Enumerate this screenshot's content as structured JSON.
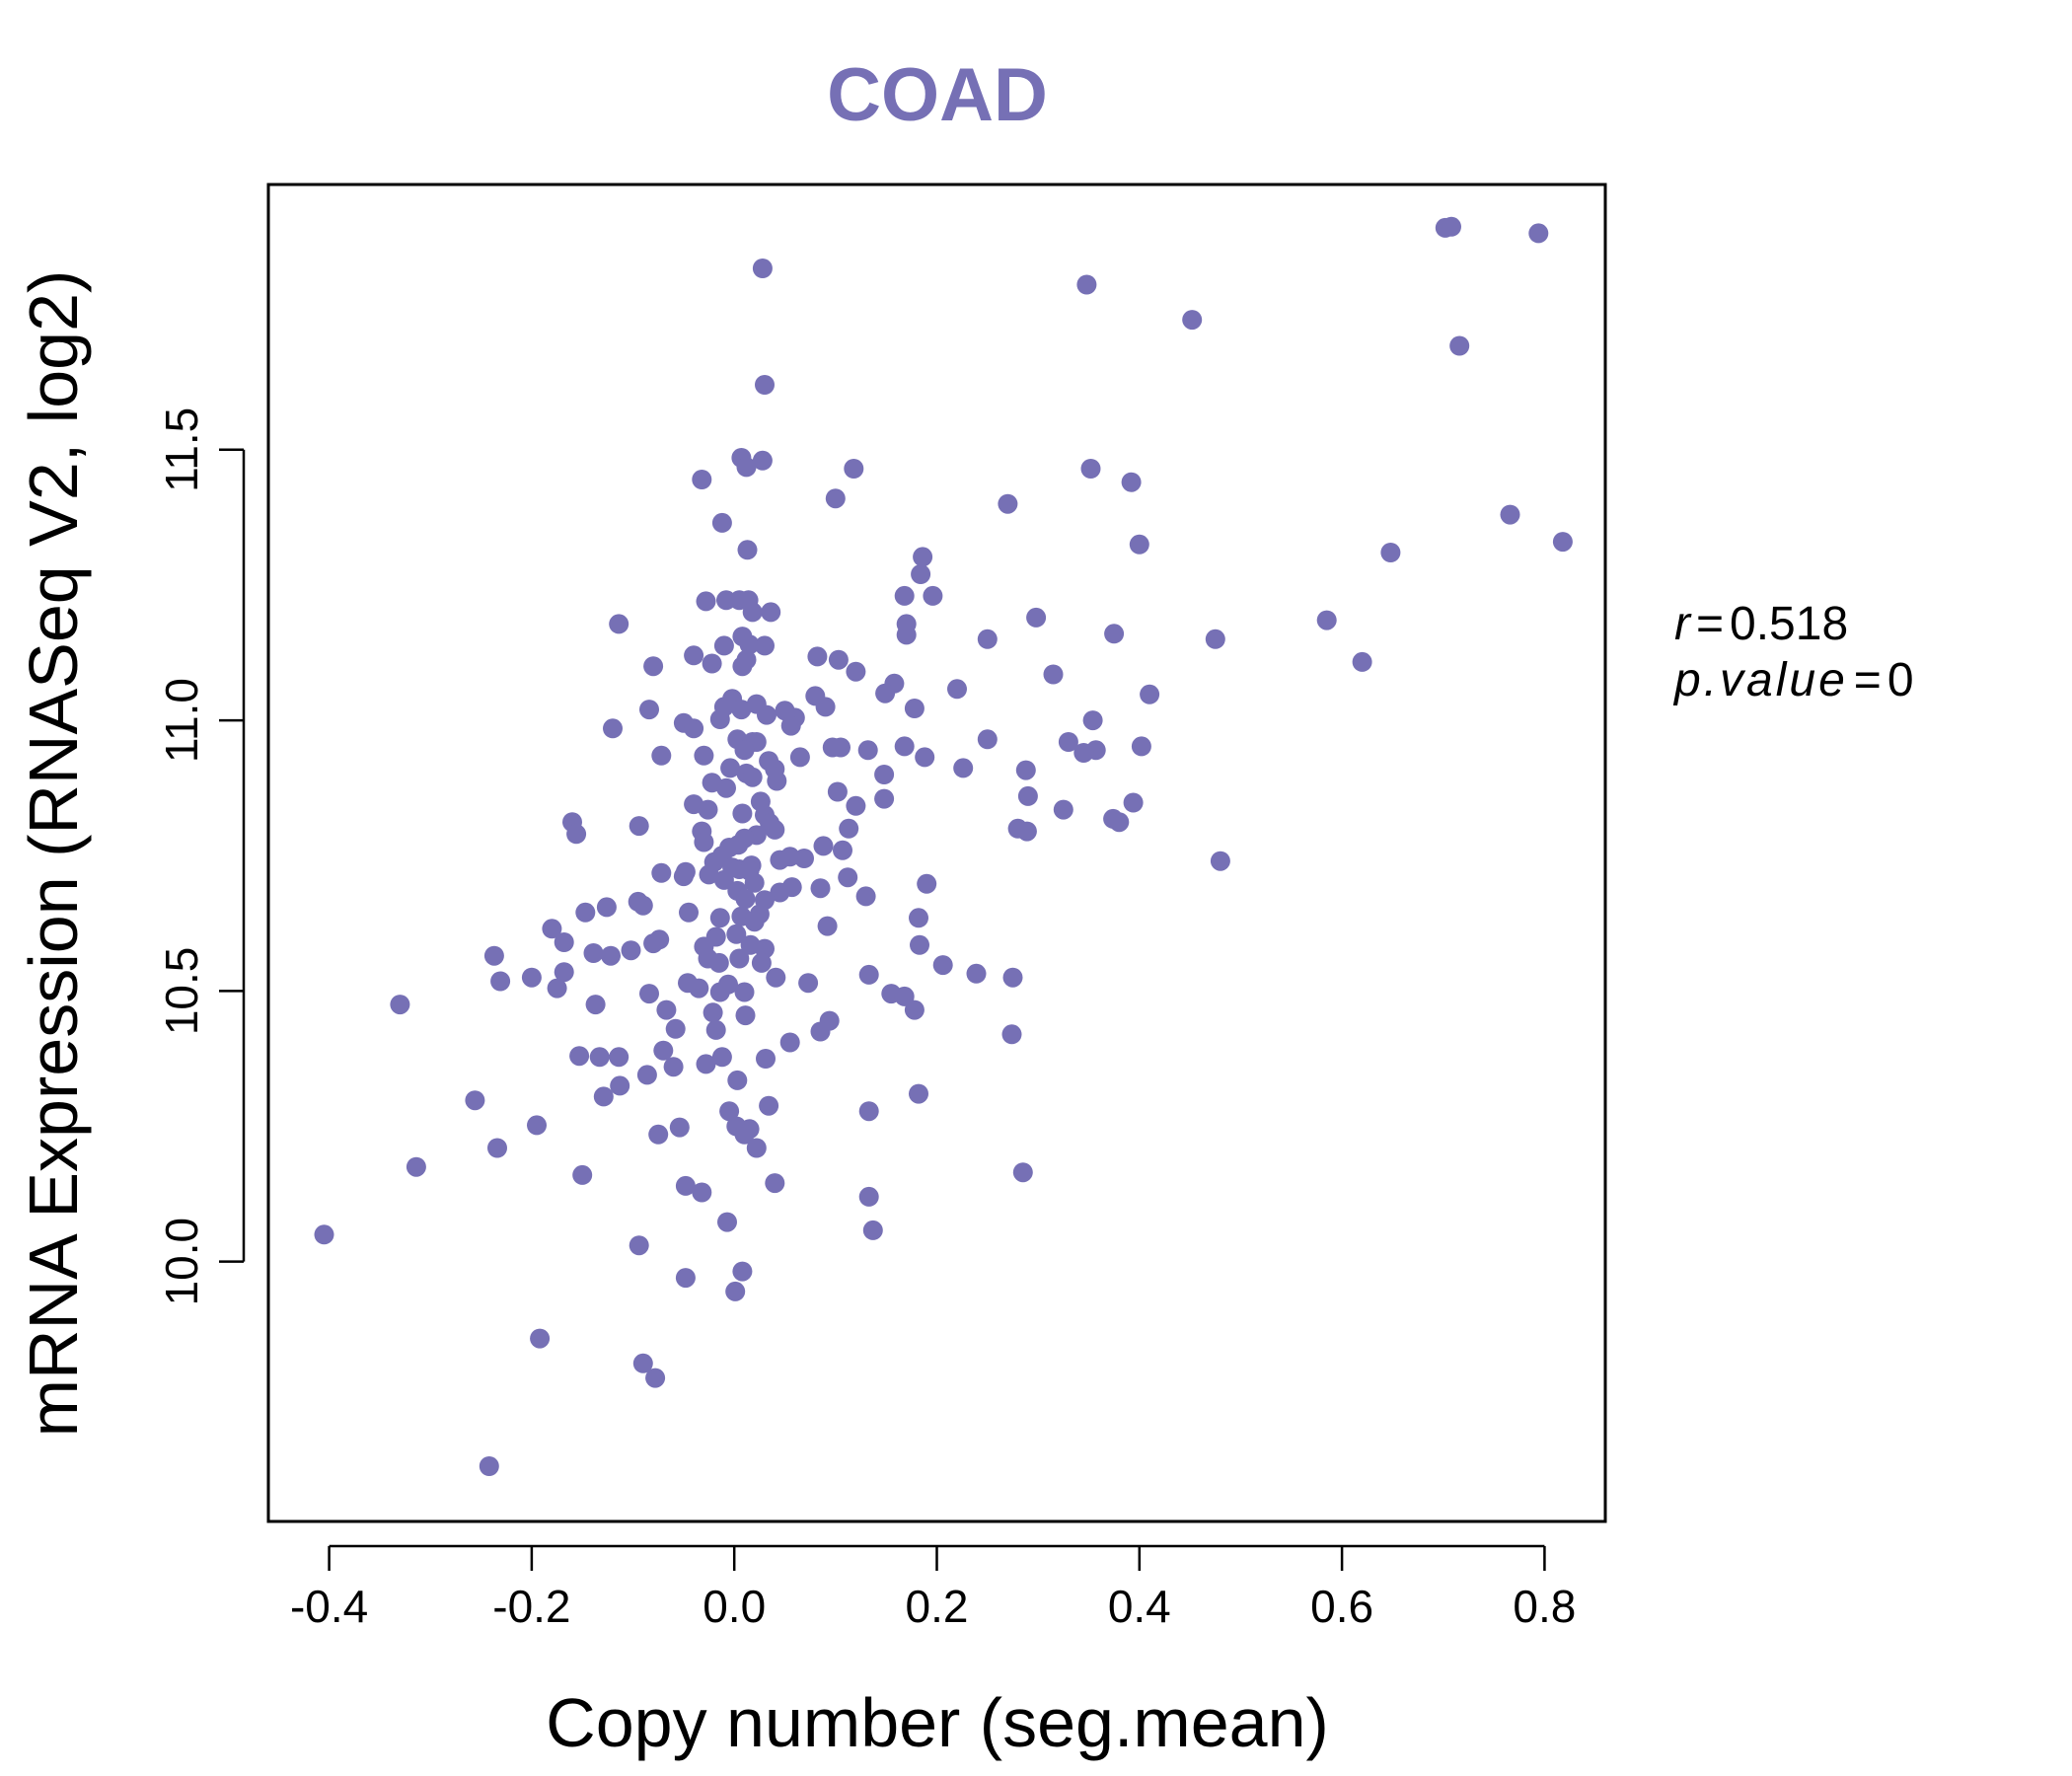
{
  "chart_data": {
    "type": "scatter",
    "title": "COAD",
    "xlabel": "Copy number (seg.mean)",
    "ylabel": "mRNA Expression (RNASeq V2, log2)",
    "xlim": [
      -0.46,
      0.86
    ],
    "ylim": [
      9.52,
      11.99
    ],
    "x_ticks": [
      -0.4,
      -0.2,
      0.0,
      0.2,
      0.4,
      0.6,
      0.8
    ],
    "x_tick_labels": [
      "-0.4",
      "-0.2",
      "0.0",
      "0.2",
      "0.4",
      "0.6",
      "0.8"
    ],
    "y_ticks": [
      10.0,
      10.5,
      11.0,
      11.5
    ],
    "y_tick_labels": [
      "10.0",
      "10.5",
      "11.0",
      "11.5"
    ],
    "grid": false,
    "legend": "none",
    "point_color": "#7670b5",
    "stats": {
      "r_label": "r",
      "r_value": "0.518",
      "p_label": "p.value",
      "p_value": "0"
    },
    "points": [
      [
        0.028,
        11.835
      ],
      [
        0.348,
        11.805
      ],
      [
        0.452,
        11.74
      ],
      [
        0.702,
        11.91
      ],
      [
        0.708,
        11.912
      ],
      [
        0.794,
        11.9
      ],
      [
        0.716,
        11.692
      ],
      [
        0.03,
        11.62
      ],
      [
        0.766,
        11.38
      ],
      [
        0.818,
        11.33
      ],
      [
        0.648,
        11.31
      ],
      [
        0.585,
        11.185
      ],
      [
        0.62,
        11.108
      ],
      [
        0.475,
        11.15
      ],
      [
        0.48,
        10.74
      ],
      [
        0.007,
        11.485
      ],
      [
        0.028,
        11.48
      ],
      [
        0.118,
        11.465
      ],
      [
        0.012,
        11.468
      ],
      [
        -0.032,
        11.445
      ],
      [
        0.352,
        11.465
      ],
      [
        0.392,
        11.44
      ],
      [
        0.1,
        11.41
      ],
      [
        0.27,
        11.4
      ],
      [
        -0.012,
        11.365
      ],
      [
        0.4,
        11.325
      ],
      [
        0.013,
        11.315
      ],
      [
        0.186,
        11.302
      ],
      [
        0.184,
        11.27
      ],
      [
        0.168,
        11.23
      ],
      [
        0.196,
        11.23
      ],
      [
        -0.028,
        11.22
      ],
      [
        -0.008,
        11.222
      ],
      [
        0.005,
        11.222
      ],
      [
        0.014,
        11.222
      ],
      [
        0.018,
        11.2
      ],
      [
        0.036,
        11.2
      ],
      [
        0.298,
        11.19
      ],
      [
        0.17,
        11.178
      ],
      [
        -0.114,
        11.178
      ],
      [
        0.17,
        11.158
      ],
      [
        0.25,
        11.15
      ],
      [
        0.375,
        11.16
      ],
      [
        0.008,
        11.155
      ],
      [
        -0.01,
        11.138
      ],
      [
        0.015,
        11.14
      ],
      [
        0.03,
        11.138
      ],
      [
        -0.04,
        11.12
      ],
      [
        0.082,
        11.118
      ],
      [
        0.103,
        11.112
      ],
      [
        -0.022,
        11.105
      ],
      [
        -0.08,
        11.1
      ],
      [
        0.008,
        11.1
      ],
      [
        0.012,
        11.112
      ],
      [
        0.12,
        11.09
      ],
      [
        0.315,
        11.085
      ],
      [
        0.158,
        11.068
      ],
      [
        0.22,
        11.058
      ],
      [
        0.149,
        11.05
      ],
      [
        0.41,
        11.048
      ],
      [
        0.08,
        11.045
      ],
      [
        -0.002,
        11.04
      ],
      [
        0.022,
        11.03
      ],
      [
        -0.01,
        11.025
      ],
      [
        0.09,
        11.025
      ],
      [
        -0.084,
        11.02
      ],
      [
        0.178,
        11.022
      ],
      [
        0.007,
        11.02
      ],
      [
        0.05,
        11.018
      ],
      [
        0.032,
        11.01
      ],
      [
        0.06,
        11.005
      ],
      [
        -0.014,
        11.002
      ],
      [
        0.354,
        11.0
      ],
      [
        0.056,
        10.99
      ],
      [
        -0.05,
        10.995
      ],
      [
        -0.04,
        10.985
      ],
      [
        -0.12,
        10.985
      ],
      [
        0.25,
        10.965
      ],
      [
        0.33,
        10.96
      ],
      [
        0.003,
        10.965
      ],
      [
        0.018,
        10.96
      ],
      [
        0.022,
        10.96
      ],
      [
        0.097,
        10.95
      ],
      [
        0.105,
        10.95
      ],
      [
        0.132,
        10.945
      ],
      [
        0.168,
        10.952
      ],
      [
        0.357,
        10.945
      ],
      [
        0.345,
        10.94
      ],
      [
        0.402,
        10.952
      ],
      [
        0.01,
        10.945
      ],
      [
        -0.03,
        10.935
      ],
      [
        0.065,
        10.932
      ],
      [
        0.188,
        10.932
      ],
      [
        -0.072,
        10.935
      ],
      [
        0.034,
        10.925
      ],
      [
        0.226,
        10.912
      ],
      [
        -0.004,
        10.912
      ],
      [
        0.04,
        10.91
      ],
      [
        0.288,
        10.908
      ],
      [
        0.148,
        10.9
      ],
      [
        0.012,
        10.902
      ],
      [
        0.018,
        10.895
      ],
      [
        0.042,
        10.888
      ],
      [
        -0.022,
        10.885
      ],
      [
        -0.008,
        10.875
      ],
      [
        0.102,
        10.868
      ],
      [
        0.29,
        10.86
      ],
      [
        0.148,
        10.855
      ],
      [
        0.026,
        10.85
      ],
      [
        -0.04,
        10.845
      ],
      [
        0.12,
        10.842
      ],
      [
        0.394,
        10.848
      ],
      [
        0.325,
        10.835
      ],
      [
        -0.026,
        10.835
      ],
      [
        0.008,
        10.828
      ],
      [
        0.03,
        10.825
      ],
      [
        0.374,
        10.818
      ],
      [
        0.38,
        10.812
      ],
      [
        -0.16,
        10.812
      ],
      [
        -0.094,
        10.805
      ],
      [
        0.035,
        10.81
      ],
      [
        0.113,
        10.8
      ],
      [
        0.28,
        10.8
      ],
      [
        0.289,
        10.795
      ],
      [
        -0.156,
        10.79
      ],
      [
        0.04,
        10.798
      ],
      [
        -0.032,
        10.795
      ],
      [
        0.022,
        10.788
      ],
      [
        0.01,
        10.782
      ],
      [
        -0.03,
        10.775
      ],
      [
        0.004,
        10.77
      ],
      [
        0.088,
        10.768
      ],
      [
        -0.005,
        10.765
      ],
      [
        0.107,
        10.76
      ],
      [
        0.055,
        10.748
      ],
      [
        0.069,
        10.745
      ],
      [
        -0.012,
        10.75
      ],
      [
        0.045,
        10.742
      ],
      [
        -0.02,
        10.738
      ],
      [
        0.017,
        10.732
      ],
      [
        0.005,
        10.725
      ],
      [
        -0.002,
        10.728
      ],
      [
        0.015,
        10.722
      ],
      [
        -0.072,
        10.718
      ],
      [
        -0.05,
        10.712
      ],
      [
        -0.025,
        10.715
      ],
      [
        0.112,
        10.71
      ],
      [
        -0.048,
        10.72
      ],
      [
        -0.01,
        10.705
      ],
      [
        0.02,
        10.7
      ],
      [
        0.19,
        10.698
      ],
      [
        0.057,
        10.692
      ],
      [
        0.085,
        10.69
      ],
      [
        0.003,
        10.685
      ],
      [
        0.045,
        10.682
      ],
      [
        0.13,
        10.675
      ],
      [
        0.011,
        10.67
      ],
      [
        0.03,
        10.668
      ],
      [
        -0.095,
        10.665
      ],
      [
        -0.09,
        10.658
      ],
      [
        -0.126,
        10.655
      ],
      [
        -0.147,
        10.645
      ],
      [
        -0.045,
        10.645
      ],
      [
        0.025,
        10.642
      ],
      [
        0.007,
        10.638
      ],
      [
        -0.014,
        10.635
      ],
      [
        0.182,
        10.635
      ],
      [
        0.02,
        10.628
      ],
      [
        0.092,
        10.62
      ],
      [
        -0.18,
        10.615
      ],
      [
        0.002,
        10.605
      ],
      [
        -0.018,
        10.6
      ],
      [
        -0.074,
        10.595
      ],
      [
        -0.168,
        10.59
      ],
      [
        -0.08,
        10.588
      ],
      [
        0.016,
        10.585
      ],
      [
        -0.03,
        10.582
      ],
      [
        0.03,
        10.578
      ],
      [
        0.183,
        10.585
      ],
      [
        -0.102,
        10.575
      ],
      [
        -0.139,
        10.57
      ],
      [
        -0.237,
        10.565
      ],
      [
        -0.122,
        10.565
      ],
      [
        -0.026,
        10.56
      ],
      [
        0.005,
        10.56
      ],
      [
        -0.015,
        10.552
      ],
      [
        0.027,
        10.552
      ],
      [
        0.206,
        10.548
      ],
      [
        0.239,
        10.532
      ],
      [
        0.133,
        10.53
      ],
      [
        0.275,
        10.525
      ],
      [
        0.041,
        10.525
      ],
      [
        -0.168,
        10.535
      ],
      [
        -0.2,
        10.525
      ],
      [
        -0.231,
        10.518
      ],
      [
        -0.046,
        10.515
      ],
      [
        0.073,
        10.515
      ],
      [
        -0.006,
        10.512
      ],
      [
        -0.175,
        10.505
      ],
      [
        -0.035,
        10.505
      ],
      [
        -0.014,
        10.498
      ],
      [
        0.01,
        10.498
      ],
      [
        -0.084,
        10.495
      ],
      [
        0.155,
        10.495
      ],
      [
        -0.33,
        10.475
      ],
      [
        -0.137,
        10.475
      ],
      [
        0.168,
        10.49
      ],
      [
        0.178,
        10.465
      ],
      [
        -0.067,
        10.465
      ],
      [
        -0.021,
        10.46
      ],
      [
        0.011,
        10.455
      ],
      [
        0.094,
        10.445
      ],
      [
        -0.058,
        10.43
      ],
      [
        -0.018,
        10.428
      ],
      [
        0.274,
        10.42
      ],
      [
        0.085,
        10.425
      ],
      [
        0.055,
        10.405
      ],
      [
        -0.07,
        10.39
      ],
      [
        -0.153,
        10.38
      ],
      [
        -0.133,
        10.378
      ],
      [
        -0.114,
        10.378
      ],
      [
        -0.012,
        10.378
      ],
      [
        0.031,
        10.375
      ],
      [
        -0.028,
        10.365
      ],
      [
        -0.06,
        10.36
      ],
      [
        -0.086,
        10.345
      ],
      [
        0.003,
        10.335
      ],
      [
        -0.113,
        10.325
      ],
      [
        -0.129,
        10.305
      ],
      [
        0.182,
        10.31
      ],
      [
        -0.256,
        10.298
      ],
      [
        0.034,
        10.288
      ],
      [
        -0.005,
        10.278
      ],
      [
        0.133,
        10.278
      ],
      [
        0.015,
        10.245
      ],
      [
        -0.195,
        10.252
      ],
      [
        -0.054,
        10.248
      ],
      [
        -0.075,
        10.235
      ],
      [
        0.002,
        10.25
      ],
      [
        0.01,
        10.235
      ],
      [
        0.022,
        10.21
      ],
      [
        -0.234,
        10.21
      ],
      [
        -0.314,
        10.175
      ],
      [
        -0.15,
        10.16
      ],
      [
        0.285,
        10.165
      ],
      [
        0.04,
        10.145
      ],
      [
        -0.048,
        10.14
      ],
      [
        -0.032,
        10.128
      ],
      [
        0.133,
        10.12
      ],
      [
        -0.007,
        10.073
      ],
      [
        0.137,
        10.058
      ],
      [
        -0.405,
        10.05
      ],
      [
        -0.094,
        10.03
      ],
      [
        0.008,
        9.982
      ],
      [
        -0.048,
        9.97
      ],
      [
        0.001,
        9.945
      ],
      [
        -0.192,
        9.858
      ],
      [
        -0.09,
        9.812
      ],
      [
        -0.078,
        9.785
      ],
      [
        -0.242,
        9.622
      ]
    ]
  }
}
